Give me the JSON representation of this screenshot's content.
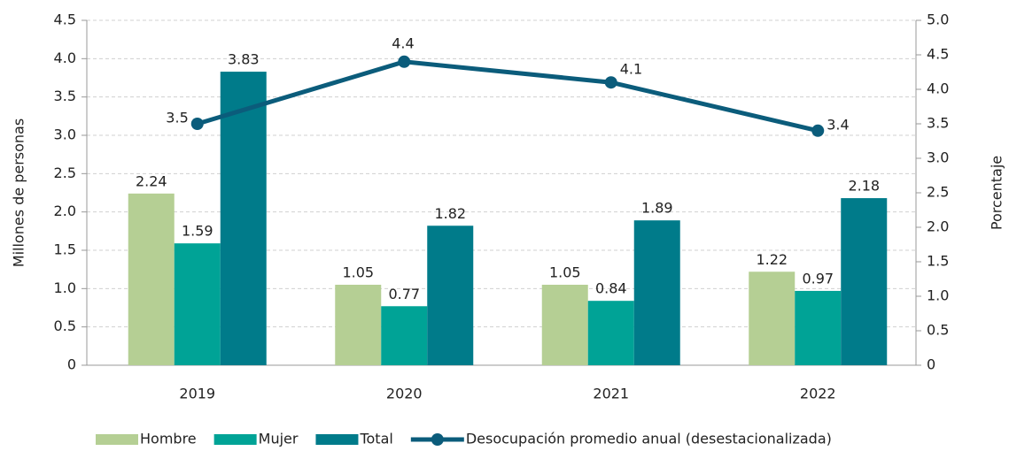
{
  "chart_data": {
    "type": "bar-line",
    "categories": [
      "2019",
      "2020",
      "2021",
      "2022"
    ],
    "series": [
      {
        "name": "Hombre",
        "color": "#b5cf94",
        "values": [
          2.24,
          1.05,
          1.05,
          1.22
        ]
      },
      {
        "name": "Mujer",
        "color": "#00a396",
        "values": [
          1.59,
          0.77,
          0.84,
          0.97
        ]
      },
      {
        "name": "Total",
        "color": "#007b8a",
        "values": [
          3.83,
          1.82,
          1.89,
          2.18
        ]
      },
      {
        "name": "Desocupación promedio anual (desestacionalizada)",
        "color": "#0b5c7b",
        "type": "line",
        "axis": "y2",
        "values": [
          3.5,
          4.4,
          4.1,
          3.4
        ]
      }
    ],
    "ylabel": "Millones de personas",
    "y2label": "Porcentaje",
    "ylim": [
      0,
      4.5
    ],
    "yticks": [
      0,
      0.5,
      {
        "value": 1,
        "label": "1.0"
      },
      1.5,
      {
        "value": 2,
        "label": "2.0"
      },
      2.5,
      {
        "value": 3,
        "label": "3.0"
      },
      3.5,
      {
        "value": 4,
        "label": "4.0"
      },
      4.5
    ],
    "y2lim": [
      0,
      5
    ],
    "y2ticks": [
      0,
      0.5,
      {
        "value": 1,
        "label": "1.0"
      },
      1.5,
      {
        "value": 2,
        "label": "2.0"
      },
      2.5,
      {
        "value": 3,
        "label": "3.0"
      },
      3.5,
      {
        "value": 4,
        "label": "4.0"
      },
      4.5,
      {
        "value": 5,
        "label": "5.0"
      }
    ],
    "grid": true,
    "legend": "bottom"
  }
}
